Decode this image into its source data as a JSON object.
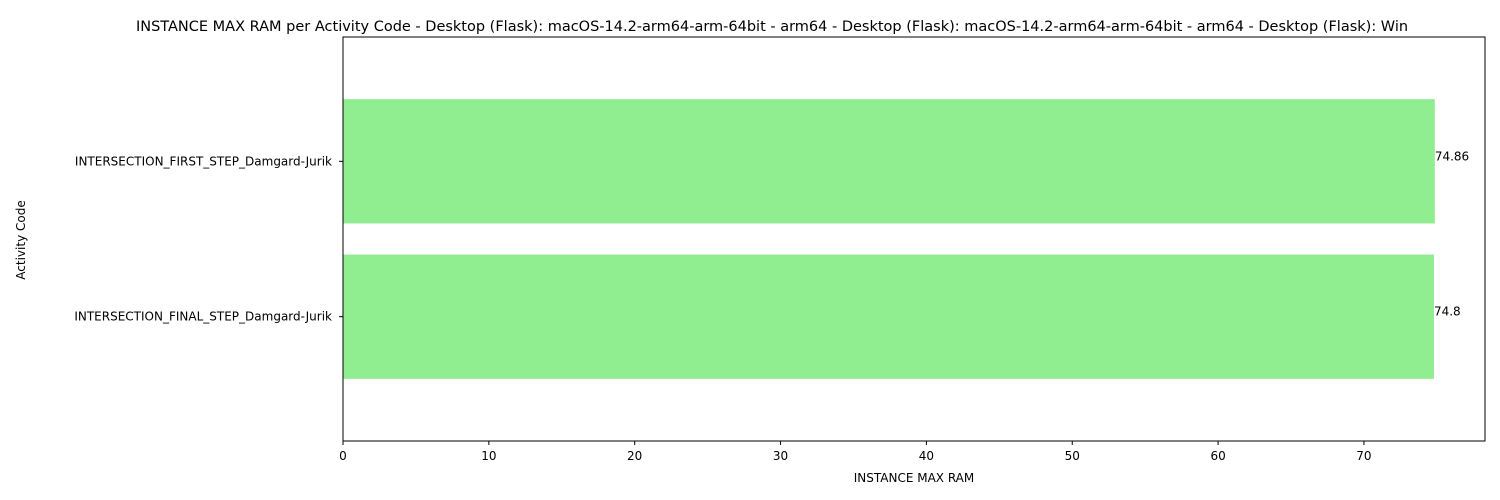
{
  "chart_data": {
    "type": "bar",
    "orientation": "horizontal",
    "title": "INSTANCE MAX RAM per Activity Code - Desktop (Flask): macOS-14.2-arm64-arm-64bit - arm64 - Desktop (Flask): macOS-14.2-arm64-arm-64bit - arm64 - Desktop (Flask): Win",
    "xlabel": "INSTANCE MAX RAM",
    "ylabel": "Activity Code",
    "categories": [
      "INTERSECTION_FIRST_STEP_Damgard-Jurik",
      "INTERSECTION_FINAL_STEP_Damgard-Jurik"
    ],
    "values": [
      74.86,
      74.8
    ],
    "data_labels": [
      "74.86",
      "74.8"
    ],
    "xlim": [
      0,
      78.3
    ],
    "xticks": [
      0,
      10,
      20,
      30,
      40,
      50,
      60,
      70
    ],
    "xtick_labels": [
      "0",
      "10",
      "20",
      "30",
      "40",
      "50",
      "60",
      "70"
    ],
    "bar_color": "#90ee90",
    "grid": false,
    "legend": "none"
  }
}
